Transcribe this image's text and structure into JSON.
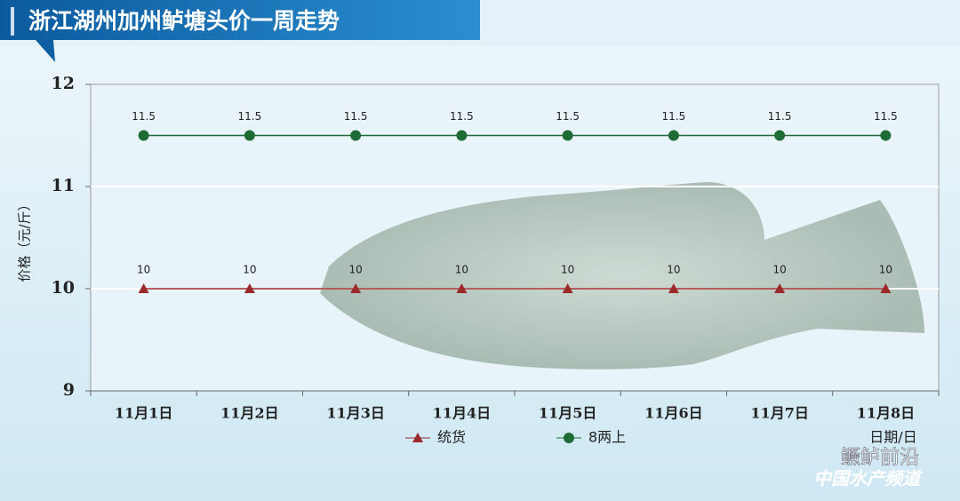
{
  "chart_data": {
    "type": "line",
    "title": "浙江湖州加州鲈塘头价一周走势",
    "y_label": "价格（元/斤）",
    "x_label": "日期/日",
    "categories": [
      "11月1日",
      "11月2日",
      "11月3日",
      "11月4日",
      "11月5日",
      "11月6日",
      "11月7日",
      "11月8日"
    ],
    "series": [
      {
        "name": "统货",
        "color": "#9b2a2a",
        "marker": "triangle",
        "values": [
          10,
          10,
          10,
          10,
          10,
          10,
          10,
          10
        ]
      },
      {
        "name": "8两上",
        "color": "#1f6b35",
        "marker": "circle",
        "values": [
          11.5,
          11.5,
          11.5,
          11.5,
          11.5,
          11.5,
          11.5,
          11.5
        ]
      }
    ],
    "ylim": [
      9,
      12
    ],
    "yticks": [
      9,
      10,
      11,
      12
    ],
    "grid": true,
    "legend": "bottom"
  },
  "watermark": {
    "name": "鳜鲈前沿",
    "source": "中国水产频道"
  }
}
